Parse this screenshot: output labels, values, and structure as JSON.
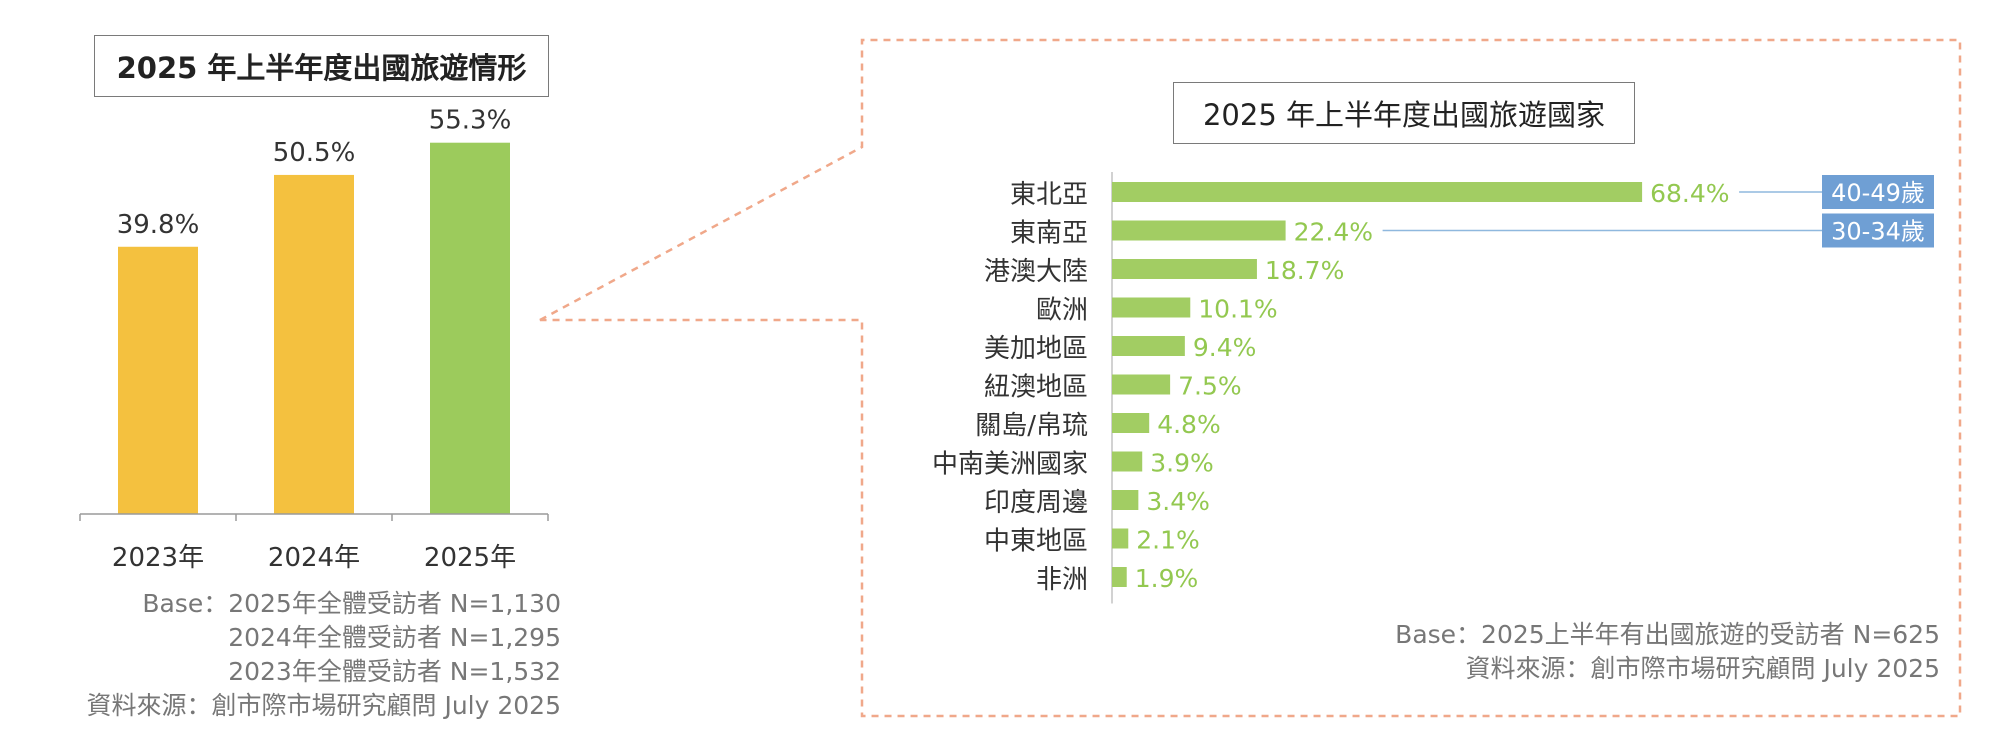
{
  "colors": {
    "bar_past": "#f4c13f",
    "bar_current": "#9ccb5c",
    "hbar": "#a2cd63",
    "hbar_label": "#93c850",
    "age_badge": "#6f9fd4",
    "callout_border": "#f0a88a",
    "axis": "#9a9a9a"
  },
  "left_panel": {
    "title": "2025 年上半年度出國旅遊情形",
    "base_lines": [
      "Base：2025年全體受訪者 N=1,130",
      "2024年全體受訪者 N=1,295",
      "2023年全體受訪者 N=1,532",
      "資料來源：創市際市場研究顧問 July 2025"
    ]
  },
  "right_panel": {
    "title": "2025 年上半年度出國旅遊國家",
    "base_lines": [
      "Base：2025上半年有出國旅遊的受訪者 N=625",
      "資料來源：創市際市場研究顧問 July 2025"
    ],
    "age_badges": [
      {
        "text": "40-49歲",
        "row": 0
      },
      {
        "text": "30-34歲",
        "row": 1
      }
    ]
  },
  "chart_data": [
    {
      "type": "bar",
      "title": "2025 年上半年度出國旅遊情形",
      "categories": [
        "2023年",
        "2024年",
        "2025年"
      ],
      "values": [
        39.8,
        50.5,
        55.3
      ],
      "value_labels": [
        "39.8%",
        "50.5%",
        "55.3%"
      ],
      "unit": "%",
      "ylim": [
        0,
        70
      ],
      "grid": false
    },
    {
      "type": "bar",
      "orientation": "horizontal",
      "title": "2025 年上半年度出國旅遊國家",
      "categories": [
        "東北亞",
        "東南亞",
        "港澳大陸",
        "歐洲",
        "美加地區",
        "紐澳地區",
        "關島/帛琉",
        "中南美洲國家",
        "印度周邊",
        "中東地區",
        "非洲"
      ],
      "values": [
        68.4,
        22.4,
        18.7,
        10.1,
        9.4,
        7.5,
        4.8,
        3.9,
        3.4,
        2.1,
        1.9
      ],
      "value_labels": [
        "68.4%",
        "22.4%",
        "18.7%",
        "10.1%",
        "9.4%",
        "7.5%",
        "4.8%",
        "3.9%",
        "3.4%",
        "2.1%",
        "1.9%"
      ],
      "unit": "%",
      "xlim": [
        0,
        80
      ],
      "grid": false
    }
  ]
}
